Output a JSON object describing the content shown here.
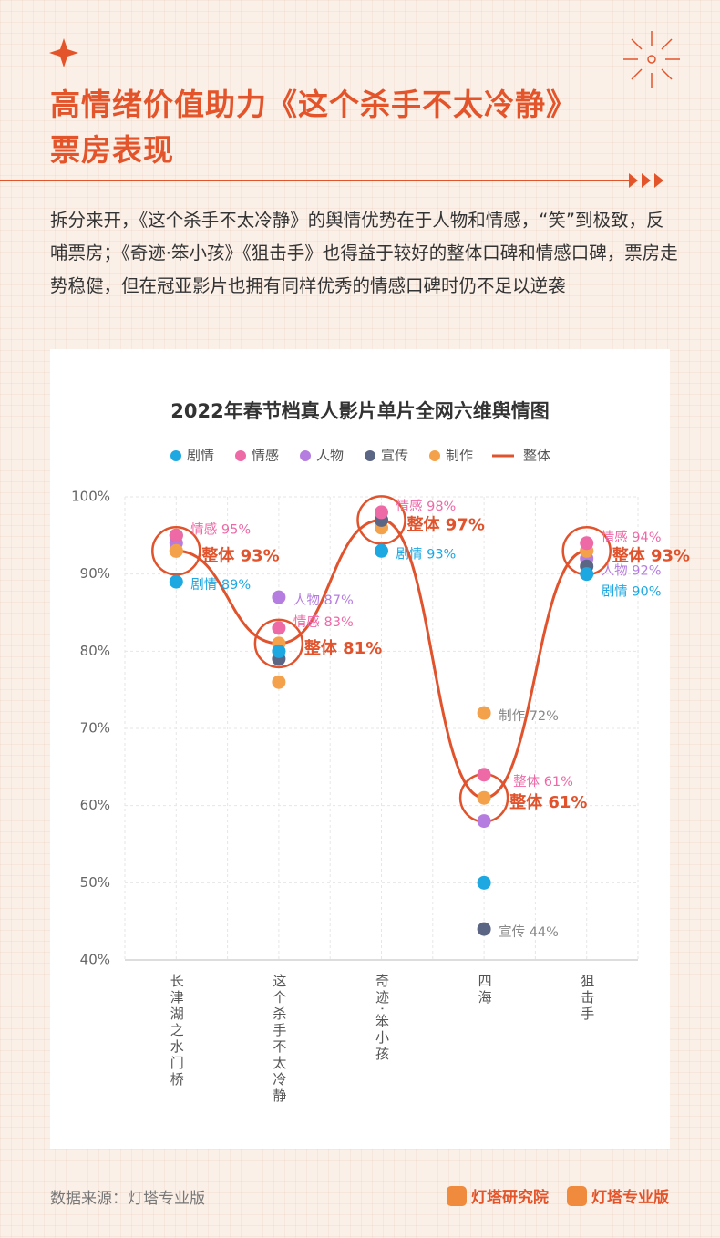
{
  "header": {
    "title_lines": [
      "高情绪价值助力《这个杀手不太冷静》",
      "票房表现"
    ],
    "intro": "拆分来开，《这个杀手不太冷静》的舆情优势在于人物和情感，“笑”到极致，反哺票房；《奇迹·笨小孩》《狙击手》也得益于较好的整体口碑和情感口碑，票房走势稳健，但在冠亚影片也拥有同样优秀的情感口碑时仍不足以逆袭"
  },
  "chart_data": {
    "type": "line",
    "title": "2022年春节档真人影片单片全网六维舆情图",
    "categories": [
      "长津湖之水门桥",
      "这个杀手不太冷静",
      "奇迹·笨小孩",
      "四海",
      "狙击手"
    ],
    "series": [
      {
        "name": "剧情",
        "color": "#1ea8e2",
        "mark": "dot",
        "values": [
          89,
          80,
          93,
          50,
          90
        ],
        "value_labels": [
          "剧情 89%",
          null,
          "剧情 93%",
          null,
          "剧情 90%"
        ]
      },
      {
        "name": "情感",
        "color": "#ee6aa7",
        "mark": "dot",
        "values": [
          95,
          83,
          98,
          64,
          94
        ],
        "value_labels": [
          "情感 95%",
          "情感 83%",
          "情感 98%",
          null,
          "情感 94%"
        ]
      },
      {
        "name": "人物",
        "color": "#b57de0",
        "mark": "dot",
        "values": [
          94,
          87,
          97,
          58,
          92
        ],
        "value_labels": [
          null,
          "人物 87%",
          null,
          null,
          "人物 92%"
        ]
      },
      {
        "name": "宣传",
        "color": "#5b6684",
        "mark": "dot",
        "values": [
          95,
          79,
          97,
          44,
          91
        ],
        "value_labels": [
          null,
          null,
          null,
          "宣传 44%",
          null
        ]
      },
      {
        "name": "制作",
        "color": "#f4a14c",
        "mark": "dot",
        "values": [
          93,
          76,
          96,
          72,
          93
        ],
        "value_labels": [
          null,
          null,
          null,
          "制作 72%",
          null
        ]
      },
      {
        "name": "整体",
        "color": "#e0532c",
        "mark": "line",
        "values": [
          93,
          81,
          97,
          61,
          93
        ],
        "value_labels": [
          "整体 93%",
          "整体 81%",
          "整体 97%",
          "整体 61%",
          "整体 93%"
        ]
      }
    ],
    "annotations": [
      "整体 61%"
    ],
    "ylim": [
      40,
      100
    ],
    "yticks": [
      {
        "value": 40,
        "label": "40%"
      },
      {
        "value": 50,
        "label": "50%"
      },
      {
        "value": 60,
        "label": "60%"
      },
      {
        "value": 70,
        "label": "70%"
      },
      {
        "value": 80,
        "label": "80%"
      },
      {
        "value": 90,
        "label": "90%"
      },
      {
        "value": 100,
        "label": "100%"
      }
    ],
    "grid": true
  },
  "footer": {
    "source": "数据来源：灯塔专业版",
    "logos": [
      "灯塔研究院",
      "灯塔专业版"
    ]
  }
}
